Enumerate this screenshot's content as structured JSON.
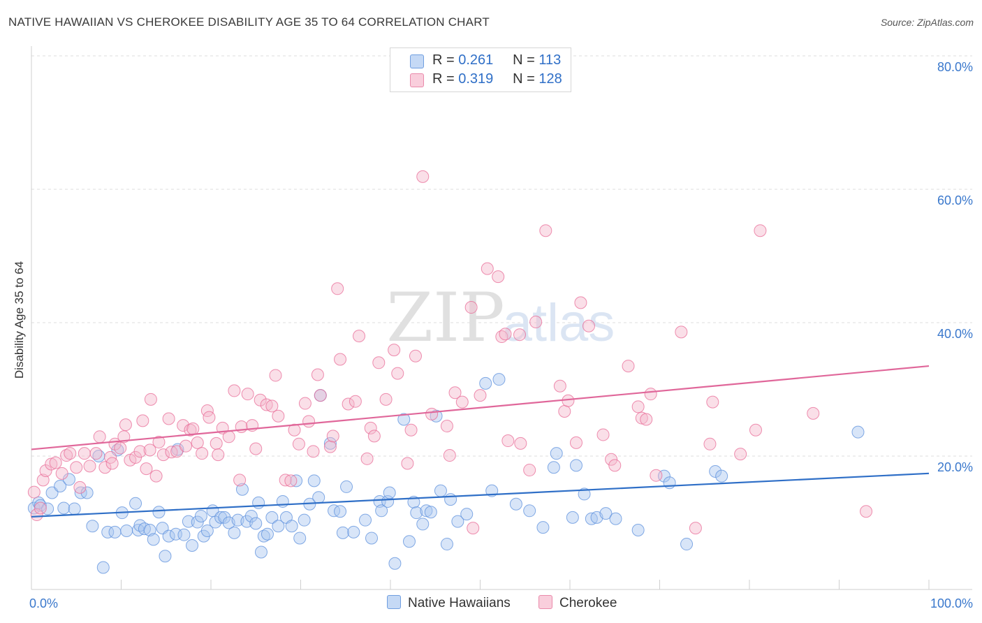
{
  "title": "NATIVE HAWAIIAN VS CHEROKEE DISABILITY AGE 35 TO 64 CORRELATION CHART",
  "source": "Source: ZipAtlas.com",
  "watermark": {
    "zip": "ZIP",
    "atlas": "atlas"
  },
  "legend": {
    "native": {
      "r_label": "R =",
      "r_value": "0.261",
      "n_label": "N =",
      "n_value": "113"
    },
    "cherokee": {
      "r_label": "R =",
      "r_value": "0.319",
      "n_label": "N =",
      "n_value": "128"
    }
  },
  "bottom_legend": {
    "native": "Native Hawaiians",
    "cherokee": "Cherokee"
  },
  "chart_data": {
    "type": "scatter",
    "title": "NATIVE HAWAIIAN VS CHEROKEE DISABILITY AGE 35 TO 64 CORRELATION CHART",
    "xlabel": "",
    "ylabel": "Disability Age 35 to 64",
    "xlim": [
      0,
      100
    ],
    "ylim": [
      0,
      80
    ],
    "x_tick_labels": [
      "0.0%",
      "100.0%"
    ],
    "y_tick_labels": [
      "20.0%",
      "40.0%",
      "60.0%",
      "80.0%"
    ],
    "y_grid": [
      20,
      40,
      60,
      80
    ],
    "colors": {
      "native": "#5b8fdc",
      "native_fill": "#a9c6ef",
      "cherokee": "#e86a96",
      "cherokee_fill": "#f5b9cd"
    },
    "series": [
      {
        "name": "Native Hawaiians",
        "trend": [
          [
            0,
            10.9
          ],
          [
            100,
            17.4
          ]
        ],
        "points": [
          [
            0.3,
            12.2
          ],
          [
            0.8,
            13.0
          ],
          [
            1.0,
            12.6
          ],
          [
            1.8,
            12.1
          ],
          [
            2.3,
            14.5
          ],
          [
            3.2,
            15.5
          ],
          [
            3.6,
            12.2
          ],
          [
            4.2,
            16.5
          ],
          [
            4.8,
            12.1
          ],
          [
            5.5,
            14.5
          ],
          [
            6.2,
            14.5
          ],
          [
            6.8,
            9.5
          ],
          [
            7.5,
            20.0
          ],
          [
            8.0,
            3.3
          ],
          [
            8.5,
            8.6
          ],
          [
            9.3,
            8.6
          ],
          [
            9.6,
            20.9
          ],
          [
            10.1,
            11.5
          ],
          [
            10.6,
            8.8
          ],
          [
            11.6,
            12.9
          ],
          [
            11.9,
            8.9
          ],
          [
            12.1,
            9.6
          ],
          [
            12.6,
            9.1
          ],
          [
            13.2,
            8.9
          ],
          [
            13.6,
            7.5
          ],
          [
            14.2,
            11.6
          ],
          [
            14.6,
            9.2
          ],
          [
            14.9,
            5.0
          ],
          [
            15.3,
            8.0
          ],
          [
            16.1,
            8.3
          ],
          [
            16.3,
            21.0
          ],
          [
            17.0,
            8.2
          ],
          [
            17.5,
            10.2
          ],
          [
            17.9,
            6.6
          ],
          [
            18.5,
            10.1
          ],
          [
            18.9,
            11.0
          ],
          [
            19.2,
            8.0
          ],
          [
            19.6,
            8.8
          ],
          [
            20.2,
            11.8
          ],
          [
            20.5,
            10.1
          ],
          [
            21.1,
            10.8
          ],
          [
            21.5,
            10.8
          ],
          [
            22.0,
            10.0
          ],
          [
            22.6,
            8.5
          ],
          [
            23.0,
            10.4
          ],
          [
            23.5,
            15.0
          ],
          [
            24.0,
            10.2
          ],
          [
            24.5,
            11.0
          ],
          [
            25.0,
            9.9
          ],
          [
            25.3,
            13.0
          ],
          [
            25.6,
            5.6
          ],
          [
            25.9,
            8.0
          ],
          [
            26.3,
            8.3
          ],
          [
            26.8,
            10.8
          ],
          [
            27.5,
            9.5
          ],
          [
            28.0,
            13.2
          ],
          [
            28.4,
            10.8
          ],
          [
            29.0,
            9.5
          ],
          [
            29.5,
            16.3
          ],
          [
            29.9,
            7.7
          ],
          [
            30.4,
            10.4
          ],
          [
            31.0,
            12.8
          ],
          [
            31.5,
            16.3
          ],
          [
            32.0,
            13.8
          ],
          [
            32.2,
            29.1
          ],
          [
            33.3,
            21.9
          ],
          [
            33.7,
            11.8
          ],
          [
            34.4,
            11.7
          ],
          [
            34.7,
            8.5
          ],
          [
            35.1,
            15.4
          ],
          [
            35.9,
            8.6
          ],
          [
            37.2,
            10.4
          ],
          [
            37.9,
            7.7
          ],
          [
            38.8,
            13.2
          ],
          [
            39.0,
            11.8
          ],
          [
            39.7,
            13.2
          ],
          [
            39.9,
            14.5
          ],
          [
            40.5,
            3.9
          ],
          [
            41.5,
            25.5
          ],
          [
            42.1,
            7.2
          ],
          [
            42.6,
            13.1
          ],
          [
            42.9,
            11.5
          ],
          [
            43.6,
            9.8
          ],
          [
            44.0,
            11.8
          ],
          [
            44.5,
            11.6
          ],
          [
            45.1,
            26.0
          ],
          [
            45.6,
            14.8
          ],
          [
            46.3,
            6.8
          ],
          [
            46.7,
            13.5
          ],
          [
            47.5,
            10.2
          ],
          [
            48.5,
            11.3
          ],
          [
            50.6,
            30.9
          ],
          [
            51.3,
            14.8
          ],
          [
            52.1,
            31.5
          ],
          [
            54.0,
            12.8
          ],
          [
            55.5,
            11.8
          ],
          [
            57.0,
            9.3
          ],
          [
            58.2,
            18.3
          ],
          [
            58.5,
            20.4
          ],
          [
            60.3,
            10.8
          ],
          [
            60.7,
            18.6
          ],
          [
            61.6,
            14.3
          ],
          [
            62.4,
            10.6
          ],
          [
            63.0,
            10.8
          ],
          [
            64.0,
            11.4
          ],
          [
            65.1,
            10.6
          ],
          [
            67.6,
            8.9
          ],
          [
            70.5,
            17.0
          ],
          [
            71.1,
            16.0
          ],
          [
            73.0,
            6.8
          ],
          [
            76.2,
            17.7
          ],
          [
            76.9,
            17.0
          ],
          [
            92.1,
            23.6
          ]
        ]
      },
      {
        "name": "Cherokee",
        "trend": [
          [
            0,
            21.0
          ],
          [
            100,
            33.5
          ]
        ],
        "points": [
          [
            0.3,
            14.6
          ],
          [
            0.6,
            11.2
          ],
          [
            1.0,
            12.2
          ],
          [
            1.3,
            16.4
          ],
          [
            1.6,
            17.8
          ],
          [
            2.2,
            18.8
          ],
          [
            2.7,
            19.0
          ],
          [
            3.4,
            17.4
          ],
          [
            3.9,
            20.1
          ],
          [
            4.3,
            20.4
          ],
          [
            5.0,
            18.3
          ],
          [
            5.4,
            15.3
          ],
          [
            5.9,
            20.4
          ],
          [
            6.5,
            18.5
          ],
          [
            7.2,
            20.4
          ],
          [
            7.6,
            22.9
          ],
          [
            8.2,
            18.3
          ],
          [
            8.8,
            19.8
          ],
          [
            9.0,
            18.9
          ],
          [
            9.3,
            21.8
          ],
          [
            9.9,
            21.2
          ],
          [
            10.3,
            22.9
          ],
          [
            10.5,
            24.7
          ],
          [
            11.0,
            19.4
          ],
          [
            11.6,
            19.8
          ],
          [
            12.1,
            20.7
          ],
          [
            12.4,
            25.3
          ],
          [
            12.8,
            18.1
          ],
          [
            13.2,
            20.9
          ],
          [
            13.3,
            28.5
          ],
          [
            13.9,
            17.0
          ],
          [
            14.2,
            22.1
          ],
          [
            14.7,
            20.2
          ],
          [
            15.3,
            25.6
          ],
          [
            15.6,
            20.6
          ],
          [
            16.2,
            20.7
          ],
          [
            16.9,
            24.6
          ],
          [
            17.2,
            21.5
          ],
          [
            17.7,
            23.9
          ],
          [
            18.0,
            24.1
          ],
          [
            18.5,
            22.0
          ],
          [
            19.0,
            20.4
          ],
          [
            19.6,
            26.8
          ],
          [
            19.8,
            25.8
          ],
          [
            20.6,
            21.9
          ],
          [
            20.8,
            20.2
          ],
          [
            21.3,
            24.2
          ],
          [
            22.0,
            22.9
          ],
          [
            22.6,
            29.8
          ],
          [
            23.2,
            16.4
          ],
          [
            23.4,
            24.4
          ],
          [
            24.1,
            29.3
          ],
          [
            24.6,
            24.6
          ],
          [
            25.0,
            21.1
          ],
          [
            25.5,
            28.4
          ],
          [
            26.2,
            27.7
          ],
          [
            26.8,
            27.5
          ],
          [
            27.2,
            32.1
          ],
          [
            27.5,
            26.0
          ],
          [
            28.3,
            16.4
          ],
          [
            28.9,
            16.3
          ],
          [
            29.3,
            23.9
          ],
          [
            29.8,
            21.8
          ],
          [
            30.5,
            27.9
          ],
          [
            30.9,
            25.2
          ],
          [
            31.4,
            20.7
          ],
          [
            31.9,
            32.2
          ],
          [
            32.2,
            29.1
          ],
          [
            33.3,
            21.4
          ],
          [
            33.6,
            23.0
          ],
          [
            34.1,
            45.1
          ],
          [
            34.4,
            34.5
          ],
          [
            35.3,
            27.8
          ],
          [
            36.1,
            28.2
          ],
          [
            36.5,
            38.0
          ],
          [
            37.4,
            19.6
          ],
          [
            37.8,
            24.2
          ],
          [
            38.2,
            23.0
          ],
          [
            38.7,
            34.0
          ],
          [
            39.5,
            28.5
          ],
          [
            40.4,
            35.9
          ],
          [
            40.8,
            32.4
          ],
          [
            41.9,
            18.9
          ],
          [
            42.3,
            23.9
          ],
          [
            42.8,
            35.0
          ],
          [
            43.6,
            61.9
          ],
          [
            44.6,
            26.3
          ],
          [
            46.3,
            24.5
          ],
          [
            46.6,
            20.1
          ],
          [
            47.2,
            29.5
          ],
          [
            48.0,
            28.1
          ],
          [
            49.0,
            42.3
          ],
          [
            49.2,
            9.2
          ],
          [
            50.0,
            29.1
          ],
          [
            50.8,
            48.1
          ],
          [
            52.0,
            46.9
          ],
          [
            52.4,
            37.9
          ],
          [
            52.8,
            38.3
          ],
          [
            53.1,
            22.3
          ],
          [
            54.4,
            38.2
          ],
          [
            54.5,
            21.9
          ],
          [
            55.5,
            17.9
          ],
          [
            56.2,
            40.1
          ],
          [
            57.3,
            53.8
          ],
          [
            58.9,
            30.5
          ],
          [
            59.4,
            26.7
          ],
          [
            59.8,
            28.3
          ],
          [
            60.7,
            22.0
          ],
          [
            61.2,
            43.0
          ],
          [
            62.1,
            39.5
          ],
          [
            63.7,
            23.2
          ],
          [
            64.6,
            19.5
          ],
          [
            65.0,
            18.6
          ],
          [
            66.5,
            33.5
          ],
          [
            67.6,
            27.4
          ],
          [
            68.0,
            25.7
          ],
          [
            68.5,
            25.5
          ],
          [
            69.0,
            29.3
          ],
          [
            69.6,
            17.1
          ],
          [
            72.4,
            38.6
          ],
          [
            74.0,
            9.2
          ],
          [
            75.6,
            21.8
          ],
          [
            75.9,
            28.1
          ],
          [
            79.0,
            20.3
          ],
          [
            80.7,
            23.9
          ],
          [
            81.2,
            53.8
          ],
          [
            87.1,
            26.4
          ],
          [
            93.0,
            11.7
          ]
        ]
      }
    ]
  }
}
